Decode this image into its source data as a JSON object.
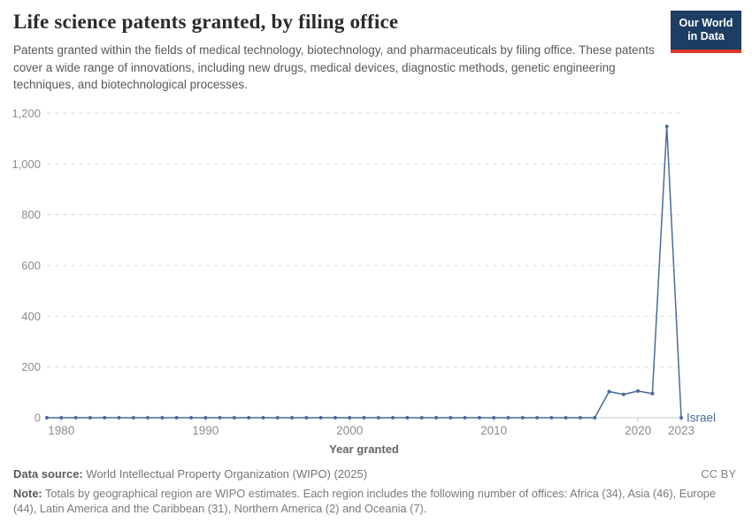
{
  "header": {
    "title": "Life science patents granted, by filing office",
    "subtitle": "Patents granted within the fields of medical technology, biotechnology, and pharmaceuticals by filing office. These patents cover a wide range of innovations, including new drugs, medical devices, diagnostic methods, genetic engineering techniques, and biotechnological processes.",
    "logo_line1": "Our World",
    "logo_line2": "in Data"
  },
  "chart_data": {
    "type": "line",
    "title": "Life science patents granted, by filing office",
    "xlabel": "Year granted",
    "ylabel": "",
    "ylim": [
      0,
      1200
    ],
    "yticks": [
      0,
      200,
      400,
      600,
      800,
      1000,
      1200
    ],
    "xticks": [
      1980,
      1990,
      2000,
      2010,
      2020,
      2023
    ],
    "grid": "horizontal-dashed",
    "legend_position": "end-of-line",
    "colors": {
      "series": "#4c6a9c",
      "gridline": "#dedede",
      "axis_line": "#c8c8c8",
      "tick_text": "#8c8c8c",
      "axis_title_text": "#666666"
    },
    "series": [
      {
        "name": "Israel",
        "color": "#4c6a9c",
        "x": [
          1979,
          1980,
          1981,
          1982,
          1983,
          1984,
          1985,
          1986,
          1987,
          1988,
          1989,
          1990,
          1991,
          1992,
          1993,
          1994,
          1995,
          1996,
          1997,
          1998,
          1999,
          2000,
          2001,
          2002,
          2003,
          2004,
          2005,
          2006,
          2007,
          2008,
          2009,
          2010,
          2011,
          2012,
          2013,
          2014,
          2015,
          2016,
          2017,
          2018,
          2019,
          2020,
          2021,
          2022,
          2023
        ],
        "values": [
          0,
          0,
          0,
          0,
          0,
          0,
          0,
          0,
          0,
          0,
          0,
          0,
          0,
          0,
          0,
          0,
          0,
          0,
          0,
          0,
          0,
          0,
          0,
          0,
          0,
          0,
          0,
          0,
          0,
          0,
          0,
          0,
          0,
          0,
          0,
          0,
          0,
          0,
          0,
          103,
          92,
          105,
          95,
          1148,
          0
        ]
      }
    ]
  },
  "footer": {
    "data_source_label": "Data source:",
    "data_source": "World Intellectual Property Organization (WIPO) (2025)",
    "license": "CC BY",
    "note_label": "Note:",
    "note": "Totals by geographical region are WIPO estimates. Each region includes the following number of offices: Africa (34), Asia (46), Europe (44), Latin America and the Caribbean (31), Northern America (2) and Oceania (7)."
  }
}
